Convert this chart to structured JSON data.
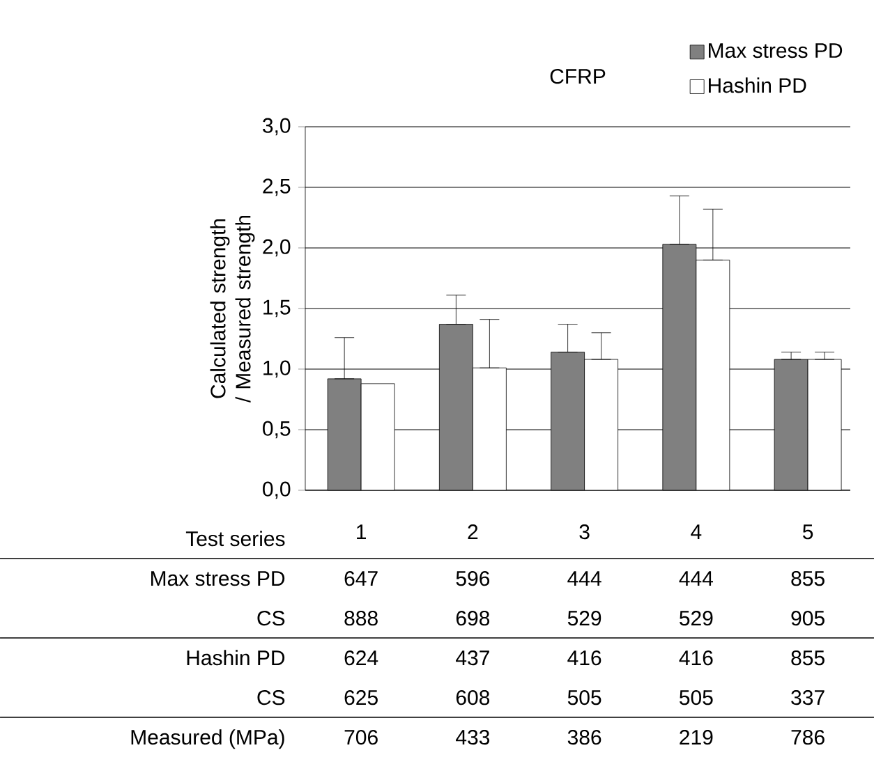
{
  "chart_data": {
    "type": "bar",
    "title": "CFRP",
    "xlabel": "Test series",
    "ylabel": "Calculated strength / Measured strength",
    "categories": [
      "1",
      "2",
      "3",
      "4",
      "5"
    ],
    "series": [
      {
        "name": "Max stress PD",
        "color": "#808080",
        "values": [
          0.92,
          1.37,
          1.14,
          2.03,
          1.08
        ],
        "errors": [
          [
            0.92,
            1.26
          ],
          [
            1.37,
            1.61
          ],
          [
            1.14,
            1.37
          ],
          [
            2.03,
            2.43
          ],
          [
            1.08,
            1.14
          ]
        ]
      },
      {
        "name": "Hashin PD",
        "color": "#ffffff",
        "values": [
          0.88,
          1.01,
          1.08,
          1.9,
          1.08
        ],
        "errors": [
          null,
          [
            1.01,
            1.41
          ],
          [
            1.08,
            1.3
          ],
          [
            1.9,
            2.32
          ],
          [
            1.08,
            1.14
          ]
        ]
      }
    ],
    "ylim": [
      0,
      3
    ],
    "yticks": [
      {
        "value": 0,
        "label": "0,0"
      },
      {
        "value": 0.5,
        "label": "0,5"
      },
      {
        "value": 1,
        "label": "1,0"
      },
      {
        "value": 1.5,
        "label": "1,5"
      },
      {
        "value": 2,
        "label": "2,0"
      },
      {
        "value": 2.5,
        "label": "2,5"
      },
      {
        "value": 3,
        "label": "3,0"
      }
    ],
    "grid": "y",
    "legend": "top right",
    "annotations": [
      "Max stress PD",
      "647",
      "596",
      "444",
      "444",
      "855",
      "CS",
      "888",
      "698",
      "529",
      "529",
      "905",
      "Hashin PD",
      "624",
      "437",
      "416",
      "416",
      "855",
      "CS",
      "625",
      "608",
      "505",
      "505",
      "337",
      "Measured (MPa)",
      "706",
      "433",
      "386",
      "219",
      "786"
    ]
  }
}
